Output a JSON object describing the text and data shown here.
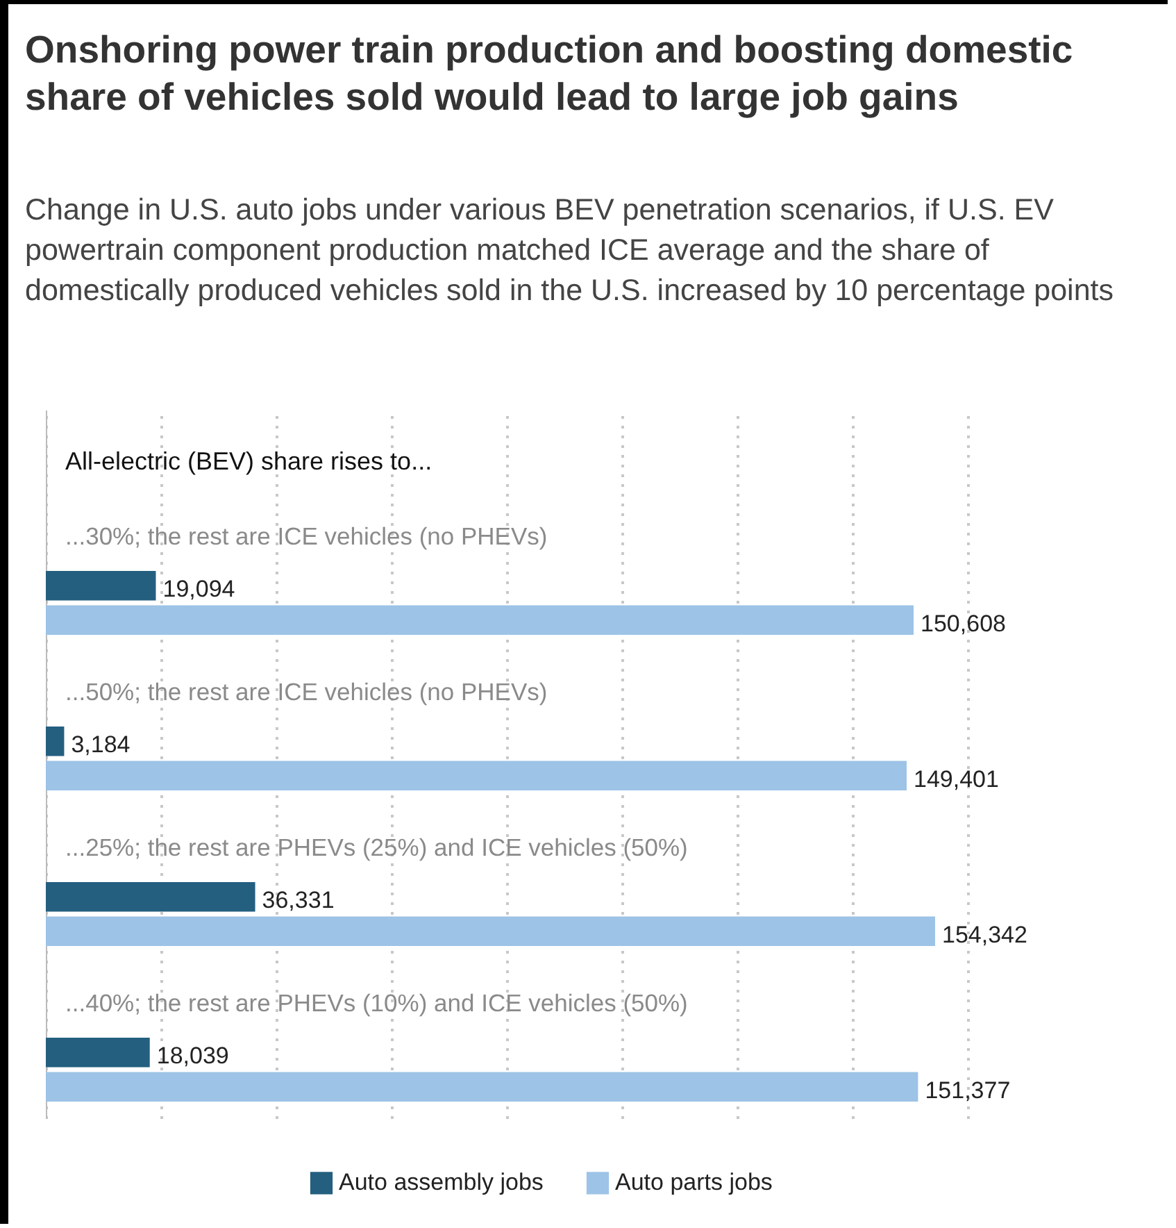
{
  "chart_data": {
    "type": "bar",
    "orientation": "horizontal",
    "title": "Onshoring power train production and boosting domestic share of vehicles sold would lead to large job gains",
    "subtitle": "Change in U.S. auto jobs under various BEV penetration scenarios, if U.S. EV powertrain component production matched ICE average and the share of domestically produced vehicles sold in the U.S. increased by 10 percentage points",
    "annotations": [
      "All-electric (BEV) share rises to..."
    ],
    "categories": [
      "...30%; the rest are ICE vehicles (no PHEVs)",
      "...50%; the rest are ICE vehicles (no PHEVs)",
      "...25%; the rest are PHEVs (25%) and ICE vehicles (50%)",
      "...40%; the rest are PHEVs (10%) and ICE vehicles (50%)"
    ],
    "series": [
      {
        "name": "Auto assembly jobs",
        "color": "#245f80",
        "values": [
          19094,
          3184,
          36331,
          18039
        ],
        "value_labels": [
          "19,094",
          "3,184",
          "36,331",
          "18,039"
        ]
      },
      {
        "name": "Auto parts jobs",
        "color": "#9dc3e6",
        "values": [
          150608,
          149401,
          154342,
          151377
        ],
        "value_labels": [
          "150,608",
          "149,401",
          "154,342",
          "151,377"
        ]
      }
    ],
    "tick_labels": "y",
    "grid": "x",
    "legend": "bottom"
  }
}
